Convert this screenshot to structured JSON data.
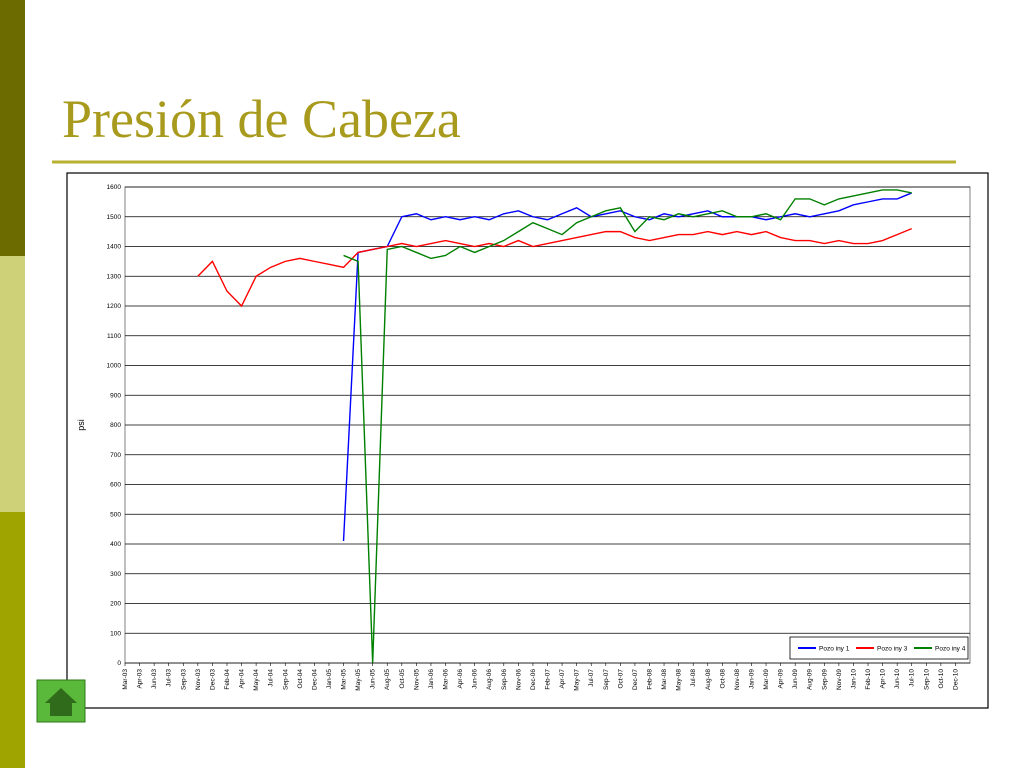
{
  "title": "Presión de Cabeza",
  "chart_data": {
    "type": "line",
    "y_label": "psi",
    "categories": [
      "Mar-03",
      "Apr-03",
      "Jun-03",
      "Jul-03",
      "Sep-03",
      "Nov-03",
      "Dec-03",
      "Feb-04",
      "Apr-04",
      "May-04",
      "Jul-04",
      "Sep-04",
      "Oct-04",
      "Dec-04",
      "Jan-05",
      "Mar-05",
      "May-05",
      "Jun-05",
      "Aug-05",
      "Oct-05",
      "Nov-05",
      "Jan-06",
      "Mar-06",
      "Apr-06",
      "Jun-06",
      "Aug-06",
      "Sep-06",
      "Nov-06",
      "Dec-06",
      "Feb-07",
      "Apr-07",
      "May-07",
      "Jul-07",
      "Sep-07",
      "Oct-07",
      "Dec-07",
      "Feb-08",
      "Mar-08",
      "May-08",
      "Jul-08",
      "Aug-08",
      "Oct-08",
      "Nov-08",
      "Jan-09",
      "Mar-09",
      "Apr-09",
      "Jun-09",
      "Aug-09",
      "Sep-09",
      "Nov-09",
      "Jan-10",
      "Feb-10",
      "Apr-10",
      "Jun-10",
      "Jul-10",
      "Sep-10",
      "Oct-10",
      "Dec-10"
    ],
    "series": [
      {
        "name": "Pozo iny 1",
        "color": "#0000ff",
        "values": [
          null,
          null,
          null,
          null,
          null,
          null,
          null,
          null,
          null,
          null,
          null,
          null,
          null,
          null,
          null,
          410,
          1380,
          1390,
          1400,
          1500,
          1510,
          1490,
          1500,
          1490,
          1500,
          1490,
          1510,
          1520,
          1500,
          1490,
          1510,
          1530,
          1500,
          1510,
          1520,
          1500,
          1490,
          1510,
          1500,
          1510,
          1520,
          1500,
          1500,
          1500,
          1490,
          1500,
          1510,
          1500,
          1510,
          1520,
          1540,
          1550,
          1560,
          1560,
          1580,
          null,
          null,
          null
        ]
      },
      {
        "name": "Pozo iny 3",
        "color": "#ff0000",
        "values": [
          null,
          null,
          null,
          null,
          null,
          1300,
          1350,
          1250,
          1200,
          1300,
          1330,
          1350,
          1360,
          1350,
          1340,
          1330,
          1380,
          1390,
          1400,
          1410,
          1400,
          1410,
          1420,
          1410,
          1400,
          1410,
          1400,
          1420,
          1400,
          1410,
          1420,
          1430,
          1440,
          1450,
          1450,
          1430,
          1420,
          1430,
          1440,
          1440,
          1450,
          1440,
          1450,
          1440,
          1450,
          1430,
          1420,
          1420,
          1410,
          1420,
          1410,
          1410,
          1420,
          1440,
          1460,
          null,
          null,
          null
        ]
      },
      {
        "name": "Pozo iny 4",
        "color": "#008000",
        "values": [
          null,
          null,
          null,
          null,
          null,
          null,
          null,
          null,
          null,
          null,
          null,
          null,
          null,
          null,
          null,
          1370,
          1350,
          0,
          1390,
          1400,
          1380,
          1360,
          1370,
          1400,
          1380,
          1400,
          1420,
          1450,
          1480,
          1460,
          1440,
          1480,
          1500,
          1520,
          1530,
          1450,
          1500,
          1490,
          1510,
          1500,
          1510,
          1520,
          1500,
          1500,
          1510,
          1490,
          1560,
          1560,
          1540,
          1560,
          1570,
          1580,
          1590,
          1590,
          1580,
          null,
          null,
          null
        ]
      }
    ],
    "ylim": [
      0,
      1600
    ],
    "yticks": [
      0,
      100,
      200,
      300,
      400,
      500,
      600,
      700,
      800,
      900,
      1000,
      1100,
      1200,
      1300,
      1400,
      1500,
      1600
    ],
    "grid": true,
    "legend": "bottom-right"
  }
}
